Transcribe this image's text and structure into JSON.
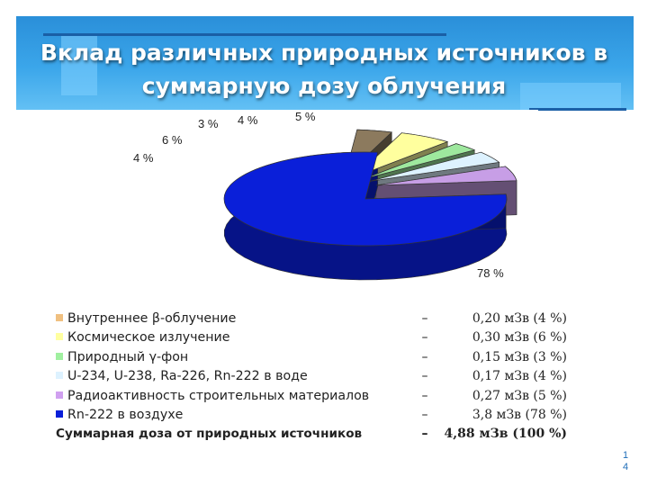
{
  "slide": {
    "title_line1": "Вклад различных природных источников в",
    "title_line2": "суммарную дозу облучения",
    "page_number_small": "1",
    "page_number": "4"
  },
  "chart_data": {
    "type": "pie",
    "style": "3d-exploded",
    "categories": [
      "Внутреннее β-облучение",
      "Космическое излучение",
      "Природный γ-фон",
      "U-234, U-238, Ra-226, Rn-222 в воде",
      "Радиоактивность строительных материалов",
      "Rn-222 в воздухе"
    ],
    "values": [
      4,
      6,
      3,
      4,
      5,
      78
    ],
    "data_labels": [
      "4 %",
      "6 %",
      "3 %",
      "4 %",
      "5 %",
      "78 %"
    ],
    "colors": [
      "#8c7a5e",
      "#ffff9e",
      "#9ee89e",
      "#ddf2ff",
      "#c79ee6",
      "#0a1fd9"
    ],
    "legend_placement": "bottom-left"
  },
  "legend": {
    "rows": [
      {
        "label": "Внутреннее β-облучение",
        "dash": "–",
        "value": "0,20 мЗв (4 %)",
        "color": "#f0c080"
      },
      {
        "label": "Космическое излучение",
        "dash": "–",
        "value": "0,30 мЗв (6 %)",
        "color": "#ffffa0"
      },
      {
        "label": "Природный γ-фон",
        "dash": "–",
        "value": "0,15 мЗв (3 %)",
        "color": "#a0f0a0"
      },
      {
        "label": "U-234, U-238, Ra-226, Rn-222 в воде",
        "dash": "–",
        "value": "0,17 мЗв (4 %)",
        "color": "#ddf2ff"
      },
      {
        "label": "Радиоактивность строительных материалов",
        "dash": "–",
        "value": "0,27 мЗв (5 %)",
        "color": "#d0a0f0"
      },
      {
        "label": "Rn-222 в воздухе",
        "dash": "–",
        "value": "3,8 мЗв (78 %)",
        "color": "#0a1fd9"
      }
    ],
    "total_label": "Суммарная доза от природных источников",
    "total_dash": "–",
    "total_value": "4,88 мЗв (100 %)"
  }
}
